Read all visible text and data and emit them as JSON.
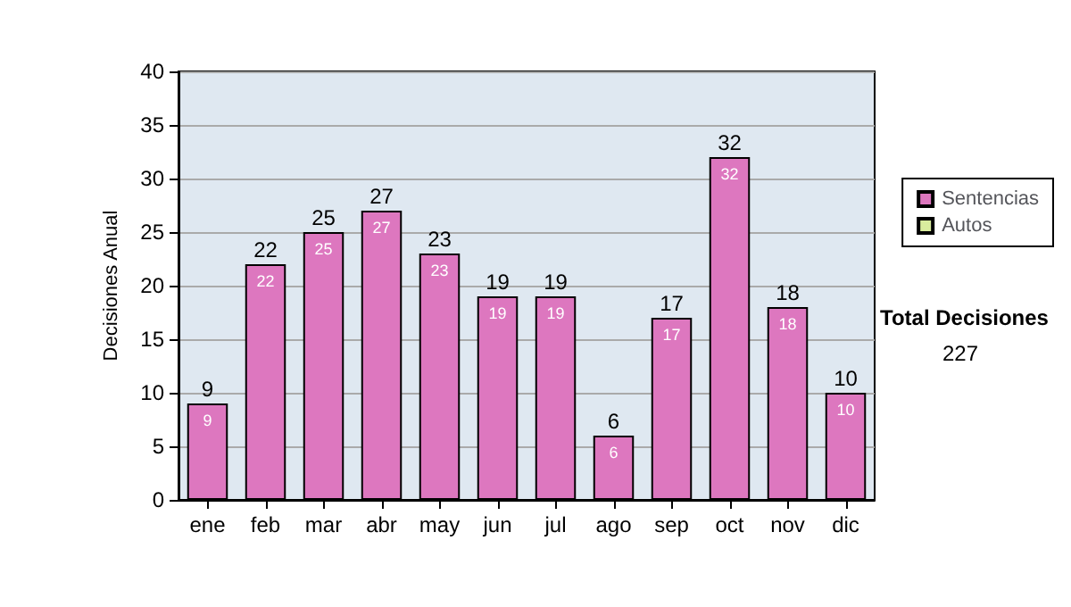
{
  "chart_data": {
    "type": "bar",
    "ylabel": "Decisiones Anual",
    "categories": [
      "ene",
      "feb",
      "mar",
      "abr",
      "may",
      "jun",
      "jul",
      "ago",
      "sep",
      "oct",
      "nov",
      "dic"
    ],
    "series": [
      {
        "name": "Sentencias",
        "color": "#dd77bf",
        "values": [
          9,
          22,
          25,
          27,
          23,
          19,
          19,
          6,
          17,
          32,
          18,
          10
        ],
        "value_labels": [
          "9",
          "22",
          "25",
          "27",
          "23",
          "19",
          "19",
          "6",
          "17",
          "32",
          "18",
          "10"
        ]
      },
      {
        "name": "Autos",
        "color": "#d9ec9e",
        "values": [
          null,
          null,
          null,
          null,
          null,
          null,
          null,
          null,
          null,
          null,
          null,
          null
        ]
      }
    ],
    "stacked": true,
    "totals": [
      "9",
      "22",
      "25",
      "27",
      "23",
      "19",
      "19",
      "6",
      "17",
      "32",
      "18",
      "10"
    ],
    "ylim": [
      0,
      40
    ],
    "yticks": [
      0,
      5,
      10,
      15,
      20,
      25,
      30,
      35,
      40
    ],
    "grid": "y",
    "legend": "right",
    "annotations": [
      "Total Decisiones",
      "227"
    ]
  }
}
